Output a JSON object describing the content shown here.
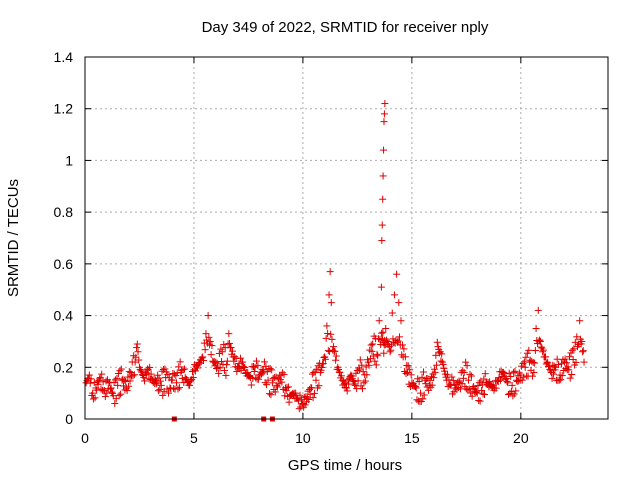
{
  "chart_data": {
    "type": "scatter",
    "title": "Day 349 of 2022, SRMTID for receiver nply",
    "xlabel": "GPS time / hours",
    "ylabel": "SRMTID / TECUs",
    "xlim": [
      0,
      24
    ],
    "ylim": [
      0,
      1.4
    ],
    "x_ticks": [
      0,
      5,
      10,
      15,
      20
    ],
    "y_ticks": [
      0,
      0.2,
      0.4,
      0.6,
      0.8,
      1,
      1.2,
      1.4
    ],
    "x_tick_labels": [
      "0",
      "5",
      "10",
      "15",
      "20"
    ],
    "y_tick_labels": [
      "0",
      "0.2",
      "0.4",
      "0.6",
      "0.8",
      "1",
      "1.2",
      "1.4"
    ],
    "grid": true,
    "marker": "+",
    "color": "#e00000",
    "series": [
      {
        "name": "SRMTID",
        "x": [
          0.05,
          0.2,
          0.35,
          0.5,
          0.7,
          0.9,
          1.1,
          1.3,
          1.5,
          1.7,
          1.9,
          2.1,
          2.3,
          2.4,
          2.5,
          2.7,
          2.9,
          3.1,
          3.3,
          3.5,
          3.7,
          3.9,
          4.0,
          4.2,
          4.4,
          4.6,
          4.8,
          5.0,
          5.2,
          5.4,
          5.55,
          5.65,
          5.75,
          5.9,
          6.1,
          6.3,
          6.5,
          6.6,
          6.8,
          7.0,
          7.2,
          7.4,
          7.6,
          7.8,
          8.0,
          8.2,
          8.4,
          8.6,
          8.8,
          9.0,
          9.2,
          9.4,
          9.6,
          9.8,
          10.0,
          10.2,
          10.4,
          10.6,
          10.8,
          11.0,
          11.1,
          11.2,
          11.25,
          11.3,
          11.4,
          11.6,
          11.8,
          12.0,
          12.2,
          12.4,
          12.6,
          12.8,
          13.0,
          13.2,
          13.4,
          13.5,
          13.6,
          13.62,
          13.64,
          13.66,
          13.68,
          13.7,
          13.72,
          13.74,
          13.76,
          13.8,
          13.9,
          14.0,
          14.1,
          14.2,
          14.3,
          14.4,
          14.5,
          14.6,
          14.8,
          15.0,
          15.2,
          15.4,
          15.6,
          15.8,
          16.0,
          16.2,
          16.4,
          16.6,
          16.8,
          17.0,
          17.2,
          17.4,
          17.6,
          17.8,
          18.0,
          18.2,
          18.4,
          18.6,
          18.8,
          19.0,
          19.2,
          19.4,
          19.6,
          19.8,
          20.0,
          20.2,
          20.4,
          20.6,
          20.7,
          20.8,
          20.9,
          21.0,
          21.2,
          21.4,
          21.6,
          21.8,
          22.0,
          22.2,
          22.4,
          22.6,
          22.7,
          22.8,
          22.9
        ],
        "y": [
          0.14,
          0.17,
          0.1,
          0.12,
          0.16,
          0.11,
          0.14,
          0.09,
          0.13,
          0.15,
          0.12,
          0.18,
          0.22,
          0.29,
          0.2,
          0.16,
          0.19,
          0.15,
          0.14,
          0.13,
          0.16,
          0.12,
          0.15,
          0.14,
          0.18,
          0.16,
          0.13,
          0.19,
          0.21,
          0.24,
          0.33,
          0.4,
          0.3,
          0.22,
          0.2,
          0.26,
          0.21,
          0.33,
          0.24,
          0.2,
          0.22,
          0.18,
          0.16,
          0.2,
          0.17,
          0.19,
          0.15,
          0.14,
          0.13,
          0.17,
          0.12,
          0.09,
          0.1,
          0.07,
          0.06,
          0.08,
          0.12,
          0.15,
          0.18,
          0.24,
          0.36,
          0.48,
          0.57,
          0.45,
          0.28,
          0.2,
          0.15,
          0.12,
          0.17,
          0.13,
          0.19,
          0.14,
          0.22,
          0.29,
          0.25,
          0.38,
          0.51,
          0.69,
          0.75,
          0.85,
          0.94,
          1.04,
          1.15,
          1.18,
          1.22,
          0.35,
          0.3,
          0.26,
          0.41,
          0.48,
          0.56,
          0.45,
          0.38,
          0.24,
          0.18,
          0.14,
          0.12,
          0.1,
          0.15,
          0.13,
          0.16,
          0.28,
          0.22,
          0.15,
          0.13,
          0.12,
          0.14,
          0.18,
          0.15,
          0.12,
          0.1,
          0.11,
          0.14,
          0.13,
          0.12,
          0.16,
          0.18,
          0.14,
          0.13,
          0.15,
          0.17,
          0.2,
          0.22,
          0.18,
          0.35,
          0.42,
          0.3,
          0.26,
          0.22,
          0.18,
          0.2,
          0.17,
          0.22,
          0.19,
          0.23,
          0.28,
          0.38,
          0.3,
          0.22
        ],
        "outliers_at_zero_x": [
          4.1,
          8.2,
          8.6
        ]
      }
    ]
  }
}
